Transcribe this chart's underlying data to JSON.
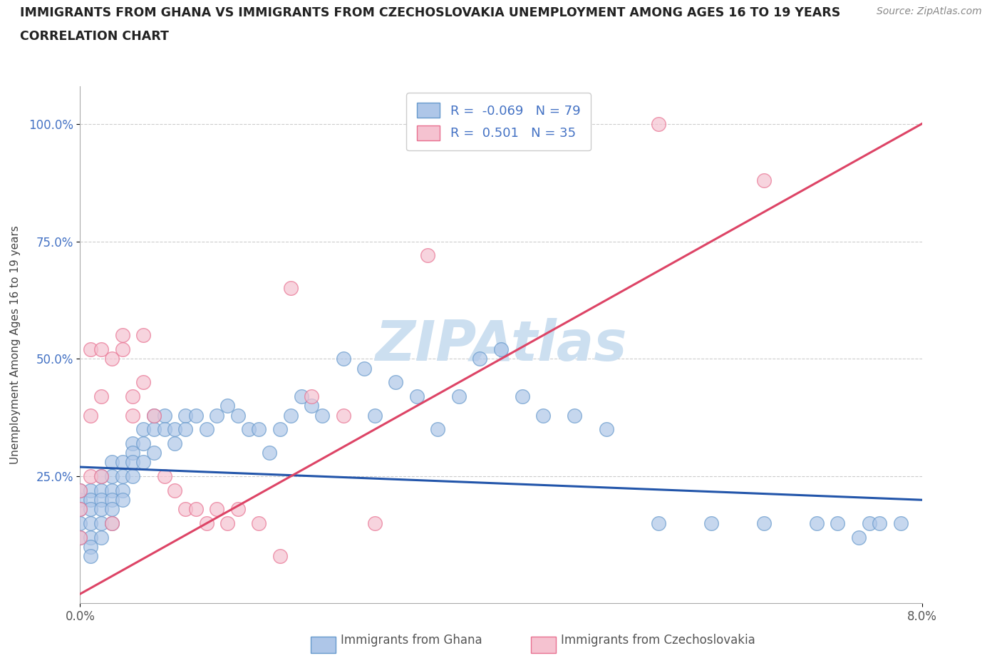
{
  "title_line1": "IMMIGRANTS FROM GHANA VS IMMIGRANTS FROM CZECHOSLOVAKIA UNEMPLOYMENT AMONG AGES 16 TO 19 YEARS",
  "title_line2": "CORRELATION CHART",
  "source": "Source: ZipAtlas.com",
  "ylabel": "Unemployment Among Ages 16 to 19 years",
  "xlim": [
    0.0,
    0.08
  ],
  "ylim": [
    -0.02,
    1.08
  ],
  "xtick_positions": [
    0.0,
    0.08
  ],
  "xtick_labels": [
    "0.0%",
    "8.0%"
  ],
  "ytick_positions": [
    0.25,
    0.5,
    0.75,
    1.0
  ],
  "ytick_labels": [
    "25.0%",
    "50.0%",
    "75.0%",
    "100.0%"
  ],
  "ghana_color": "#aec6e8",
  "ghana_edge_color": "#6699cc",
  "czechoslovakia_color": "#f5c2d0",
  "czechoslovakia_edge_color": "#e87090",
  "ghana_line_color": "#2255aa",
  "czechoslovakia_line_color": "#dd4466",
  "ghana_R": -0.069,
  "ghana_N": 79,
  "czechoslovakia_R": 0.501,
  "czechoslovakia_N": 35,
  "watermark": "ZIPAtlas",
  "watermark_color": "#ccdff0",
  "background_color": "#ffffff",
  "grid_color": "#cccccc",
  "ghana_x": [
    0.0,
    0.0,
    0.0,
    0.0,
    0.0,
    0.001,
    0.001,
    0.001,
    0.001,
    0.001,
    0.001,
    0.001,
    0.002,
    0.002,
    0.002,
    0.002,
    0.002,
    0.002,
    0.003,
    0.003,
    0.003,
    0.003,
    0.003,
    0.003,
    0.004,
    0.004,
    0.004,
    0.004,
    0.005,
    0.005,
    0.005,
    0.005,
    0.006,
    0.006,
    0.006,
    0.007,
    0.007,
    0.007,
    0.008,
    0.008,
    0.009,
    0.009,
    0.01,
    0.01,
    0.011,
    0.012,
    0.013,
    0.014,
    0.015,
    0.016,
    0.017,
    0.018,
    0.019,
    0.02,
    0.021,
    0.022,
    0.023,
    0.025,
    0.027,
    0.028,
    0.03,
    0.032,
    0.034,
    0.036,
    0.038,
    0.04,
    0.042,
    0.044,
    0.047,
    0.05,
    0.055,
    0.06,
    0.065,
    0.07,
    0.072,
    0.074,
    0.075,
    0.076,
    0.078
  ],
  "ghana_y": [
    0.2,
    0.22,
    0.18,
    0.15,
    0.12,
    0.22,
    0.2,
    0.18,
    0.15,
    0.12,
    0.1,
    0.08,
    0.25,
    0.22,
    0.2,
    0.18,
    0.15,
    0.12,
    0.28,
    0.25,
    0.22,
    0.2,
    0.18,
    0.15,
    0.28,
    0.25,
    0.22,
    0.2,
    0.32,
    0.3,
    0.28,
    0.25,
    0.35,
    0.32,
    0.28,
    0.38,
    0.35,
    0.3,
    0.38,
    0.35,
    0.35,
    0.32,
    0.38,
    0.35,
    0.38,
    0.35,
    0.38,
    0.4,
    0.38,
    0.35,
    0.35,
    0.3,
    0.35,
    0.38,
    0.42,
    0.4,
    0.38,
    0.5,
    0.48,
    0.38,
    0.45,
    0.42,
    0.35,
    0.42,
    0.5,
    0.52,
    0.42,
    0.38,
    0.38,
    0.35,
    0.15,
    0.15,
    0.15,
    0.15,
    0.15,
    0.12,
    0.15,
    0.15,
    0.15
  ],
  "czechoslovakia_x": [
    0.0,
    0.0,
    0.0,
    0.001,
    0.001,
    0.001,
    0.002,
    0.002,
    0.002,
    0.003,
    0.003,
    0.004,
    0.004,
    0.005,
    0.005,
    0.006,
    0.006,
    0.007,
    0.008,
    0.009,
    0.01,
    0.011,
    0.012,
    0.013,
    0.014,
    0.015,
    0.017,
    0.019,
    0.02,
    0.022,
    0.025,
    0.028,
    0.033,
    0.055,
    0.065
  ],
  "czechoslovakia_y": [
    0.18,
    0.22,
    0.12,
    0.25,
    0.38,
    0.52,
    0.42,
    0.52,
    0.25,
    0.5,
    0.15,
    0.52,
    0.55,
    0.38,
    0.42,
    0.55,
    0.45,
    0.38,
    0.25,
    0.22,
    0.18,
    0.18,
    0.15,
    0.18,
    0.15,
    0.18,
    0.15,
    0.08,
    0.65,
    0.42,
    0.38,
    0.15,
    0.72,
    1.0,
    0.88
  ],
  "ghana_trend_x0": 0.0,
  "ghana_trend_y0": 0.27,
  "ghana_trend_x1": 0.08,
  "ghana_trend_y1": 0.2,
  "czech_trend_x0": 0.0,
  "czech_trend_y0": 0.0,
  "czech_trend_x1": 0.08,
  "czech_trend_y1": 1.0
}
